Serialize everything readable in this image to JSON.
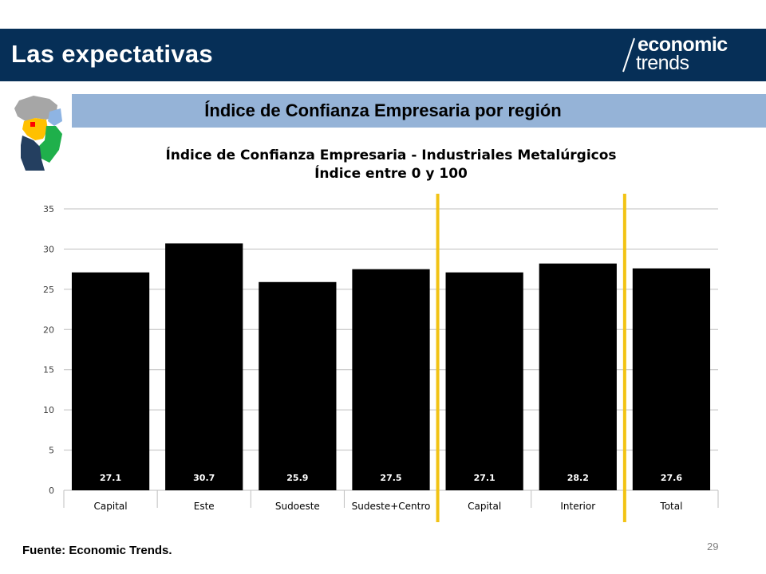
{
  "header": {
    "title": "Las expectativas",
    "logo_line1": "economic",
    "logo_line2": "trends"
  },
  "subtitle": "Índice de Confianza Empresaria por región",
  "chart_data": {
    "type": "bar",
    "title": "Índice de Confianza Empresaria - Industriales Metalúrgicos",
    "subtitle": "Índice entre 0 y 100",
    "categories": [
      "Capital",
      "Este",
      "Sudoeste",
      "Sudeste+Centro",
      "Capital",
      "Interior",
      "Total"
    ],
    "values": [
      27.1,
      30.7,
      25.9,
      27.5,
      27.1,
      28.2,
      27.6
    ],
    "data_labels": [
      "27.1",
      "30.7",
      "25.9",
      "27.5",
      "27.1",
      "28.2",
      "27.6"
    ],
    "ylim": [
      0,
      35
    ],
    "yticks": [
      0,
      5,
      10,
      15,
      20,
      25,
      30,
      35
    ],
    "grid": true,
    "bar_color": "#000000",
    "label_color": "#ffffff",
    "separator_color": "#f2c314",
    "separators_after_category_index": [
      3,
      5
    ]
  },
  "footer": {
    "source": "Fuente: Economic Trends.",
    "page_number": "29"
  },
  "colors": {
    "header_bg": "#062f57",
    "subtitle_band": "#95b3d7",
    "grid": "#bfbfbf"
  }
}
